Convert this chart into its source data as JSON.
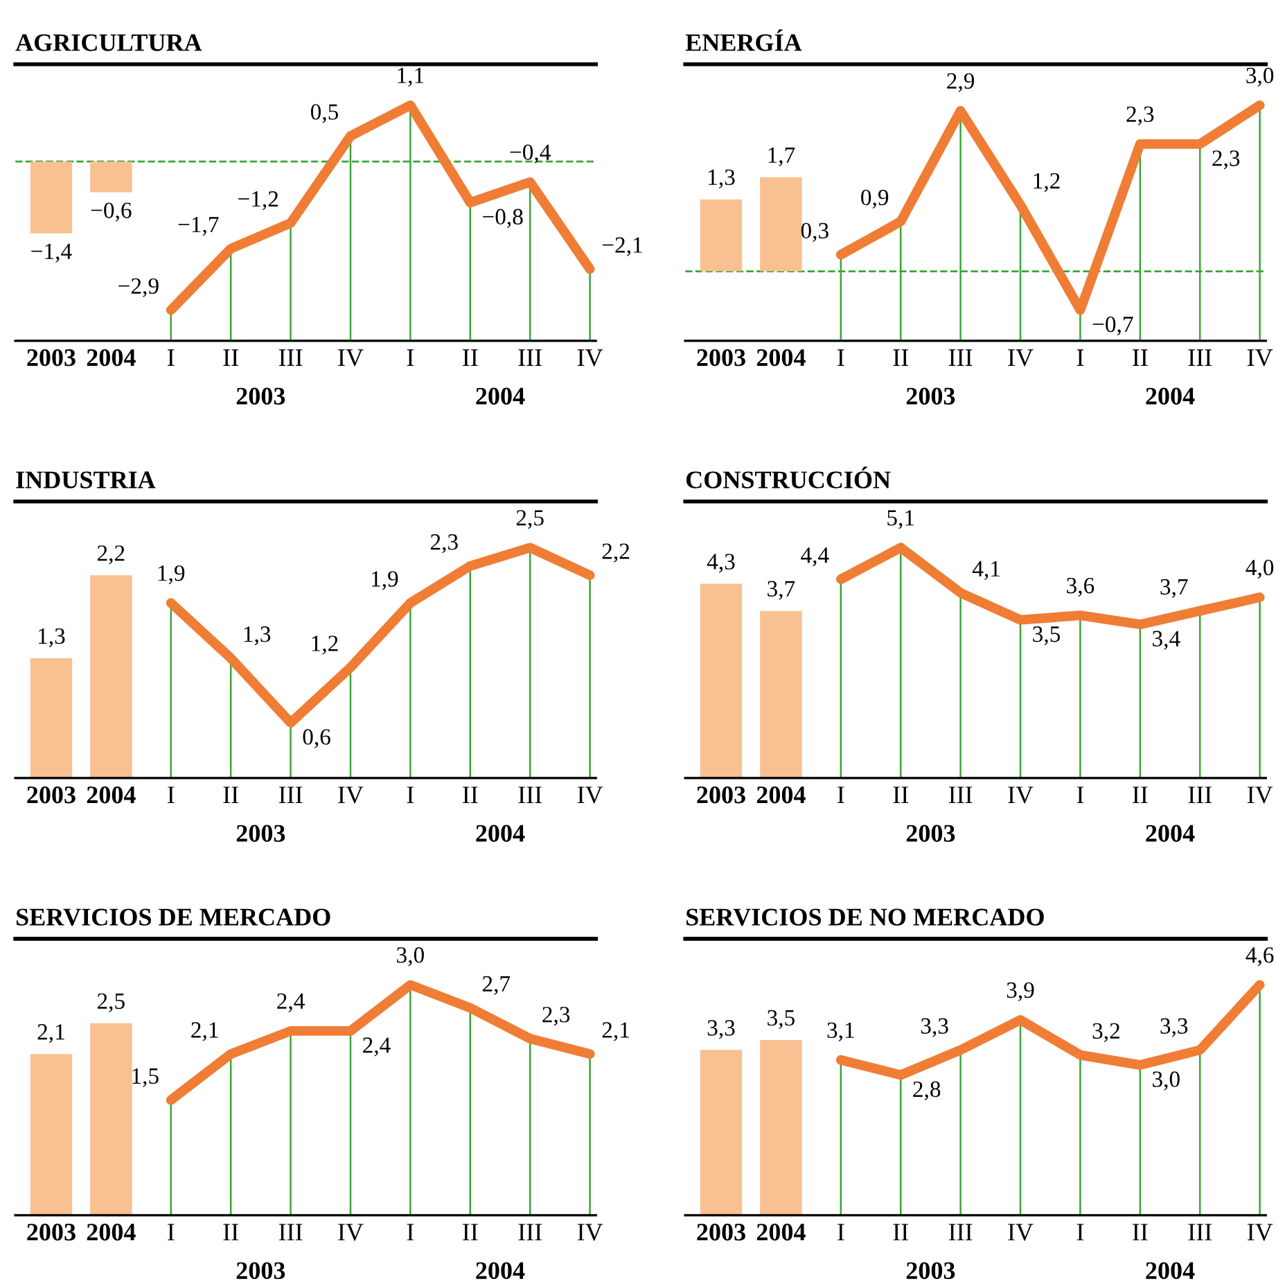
{
  "chart_data": [
    {
      "type": "bar",
      "title": "AGRICULTURA",
      "categories": [
        "2003",
        "2004",
        "I",
        "II",
        "III",
        "IV",
        "I",
        "II",
        "III",
        "IV"
      ],
      "annotations": [
        "2003",
        "2004"
      ],
      "grid": "x",
      "legend": false,
      "ref_lines": [
        {
          "axis": "y",
          "value": 0,
          "color": "#3aa635",
          "line_style": "dashed"
        }
      ],
      "series": [
        {
          "color": "#f9c192",
          "values": [
            -1.4,
            -0.6,
            null,
            null,
            null,
            null,
            null,
            null,
            null,
            null
          ],
          "value_labels": [
            "−1,4",
            "−0,6",
            null,
            null,
            null,
            null,
            null,
            null,
            null,
            null
          ]
        },
        {
          "type": "line",
          "color": "#f07d35",
          "values": [
            null,
            null,
            -2.9,
            -1.7,
            -1.2,
            0.5,
            1.1,
            -0.8,
            -0.4,
            -2.1
          ],
          "value_labels": [
            null,
            null,
            "−2,9",
            "−1,7",
            "−1,2",
            "0,5",
            "1,1",
            "−0,8",
            "−0,4",
            "−2,1"
          ]
        }
      ]
    },
    {
      "type": "bar",
      "title": "ENERGÍA",
      "categories": [
        "2003",
        "2004",
        "I",
        "II",
        "III",
        "IV",
        "I",
        "II",
        "III",
        "IV"
      ],
      "annotations": [
        "2003",
        "2004"
      ],
      "grid": "x",
      "legend": false,
      "ref_lines": [
        {
          "axis": "y",
          "value": 0,
          "color": "#3aa635",
          "line_style": "dashed"
        }
      ],
      "series": [
        {
          "color": "#f9c192",
          "values": [
            1.3,
            1.7,
            null,
            null,
            null,
            null,
            null,
            null,
            null,
            null
          ],
          "value_labels": [
            "1,3",
            "1,7",
            null,
            null,
            null,
            null,
            null,
            null,
            null,
            null
          ]
        },
        {
          "type": "line",
          "color": "#f07d35",
          "values": [
            null,
            null,
            0.3,
            0.9,
            2.9,
            1.2,
            -0.7,
            2.3,
            2.3,
            3.0
          ],
          "value_labels": [
            null,
            null,
            "0,3",
            "0,9",
            "2,9",
            "1,2",
            "−0,7",
            "2,3",
            "2,3",
            "3,0"
          ]
        }
      ]
    },
    {
      "type": "bar",
      "title": "INDUSTRIA",
      "categories": [
        "2003",
        "2004",
        "I",
        "II",
        "III",
        "IV",
        "I",
        "II",
        "III",
        "IV"
      ],
      "annotations": [
        "2003",
        "2004"
      ],
      "grid": "x",
      "legend": false,
      "series": [
        {
          "color": "#f9c192",
          "values": [
            1.3,
            2.2,
            null,
            null,
            null,
            null,
            null,
            null,
            null,
            null
          ],
          "value_labels": [
            "1,3",
            "2,2",
            null,
            null,
            null,
            null,
            null,
            null,
            null,
            null
          ]
        },
        {
          "type": "line",
          "color": "#f07d35",
          "values": [
            null,
            null,
            1.9,
            1.3,
            0.6,
            1.2,
            1.9,
            2.3,
            2.5,
            2.2
          ],
          "value_labels": [
            null,
            null,
            "1,9",
            "1,3",
            "0,6",
            "1,2",
            "1,9",
            "2,3",
            "2,5",
            "2,2"
          ]
        }
      ]
    },
    {
      "type": "bar",
      "title": "CONSTRUCCIÓN",
      "categories": [
        "2003",
        "2004",
        "I",
        "II",
        "III",
        "IV",
        "I",
        "II",
        "III",
        "IV"
      ],
      "annotations": [
        "2003",
        "2004"
      ],
      "grid": "x",
      "legend": false,
      "series": [
        {
          "color": "#f9c192",
          "values": [
            4.3,
            3.7,
            null,
            null,
            null,
            null,
            null,
            null,
            null,
            null
          ],
          "value_labels": [
            "4,3",
            "3,7",
            null,
            null,
            null,
            null,
            null,
            null,
            null,
            null
          ]
        },
        {
          "type": "line",
          "color": "#f07d35",
          "values": [
            null,
            null,
            4.4,
            5.1,
            4.1,
            3.5,
            3.6,
            3.4,
            3.7,
            4.0
          ],
          "value_labels": [
            null,
            null,
            "4,4",
            "5,1",
            "4,1",
            "3,5",
            "3,6",
            "3,4",
            "3,7",
            "4,0"
          ]
        }
      ]
    },
    {
      "type": "bar",
      "title": "SERVICIOS DE MERCADO",
      "categories": [
        "2003",
        "2004",
        "I",
        "II",
        "III",
        "IV",
        "I",
        "II",
        "III",
        "IV"
      ],
      "annotations": [
        "2003",
        "2004"
      ],
      "grid": "x",
      "legend": false,
      "series": [
        {
          "color": "#f9c192",
          "values": [
            2.1,
            2.5,
            null,
            null,
            null,
            null,
            null,
            null,
            null,
            null
          ],
          "value_labels": [
            "2,1",
            "2,5",
            null,
            null,
            null,
            null,
            null,
            null,
            null,
            null
          ]
        },
        {
          "type": "line",
          "color": "#f07d35",
          "values": [
            null,
            null,
            1.5,
            2.1,
            2.4,
            2.4,
            3.0,
            2.7,
            2.3,
            2.1
          ],
          "value_labels": [
            null,
            null,
            "1,5",
            "2,1",
            "2,4",
            "2,4",
            "3,0",
            "2,7",
            "2,3",
            "2,1"
          ]
        }
      ]
    },
    {
      "type": "bar",
      "title": "SERVICIOS DE NO MERCADO",
      "categories": [
        "2003",
        "2004",
        "I",
        "II",
        "III",
        "IV",
        "I",
        "II",
        "III",
        "IV"
      ],
      "annotations": [
        "2003",
        "2004"
      ],
      "grid": "x",
      "legend": false,
      "series": [
        {
          "color": "#f9c192",
          "values": [
            3.3,
            3.5,
            null,
            null,
            null,
            null,
            null,
            null,
            null,
            null
          ],
          "value_labels": [
            "3,3",
            "3,5",
            null,
            null,
            null,
            null,
            null,
            null,
            null,
            null
          ]
        },
        {
          "type": "line",
          "color": "#f07d35",
          "values": [
            null,
            null,
            3.1,
            2.8,
            3.3,
            3.9,
            3.2,
            3.0,
            3.3,
            4.6
          ],
          "value_labels": [
            null,
            null,
            "3,1",
            "2,8",
            "3,3",
            "3,9",
            "3,2",
            "3,0",
            "3,3",
            "4,6"
          ]
        }
      ]
    }
  ]
}
